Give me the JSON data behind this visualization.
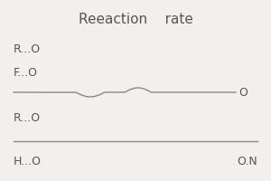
{
  "title": "Reeaction    rate",
  "label1": "R...O",
  "label2": "F...O",
  "label3": "R...O",
  "label_left": "H...O",
  "label_right": "O.N",
  "label_end": "O",
  "bg_color": "#f2f0ed",
  "text_color": "#555555",
  "line_color": "#888888",
  "title_fontsize": 11,
  "label_fontsize": 9
}
